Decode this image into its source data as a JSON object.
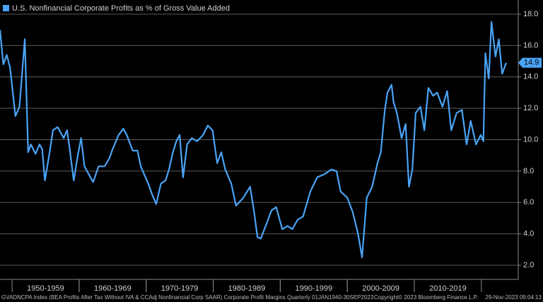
{
  "chart_data": {
    "type": "line",
    "series": [
      {
        "name": "U.S. Nonfinancial Corporate Profits as % of Gross Value Added",
        "color": "#4aa3f5",
        "x": [
          1948.2,
          1948.7,
          1949.2,
          1949.7,
          1950.5,
          1951.1,
          1951.9,
          1952.4,
          1952.8,
          1953.5,
          1954.1,
          1954.5,
          1954.9,
          1955.6,
          1956.1,
          1956.8,
          1957.7,
          1958.2,
          1958.5,
          1959.2,
          1959.8,
          1960.3,
          1960.8,
          1961.3,
          1962.1,
          1962.9,
          1963.8,
          1964.5,
          1965.0,
          1965.9,
          1966.6,
          1967.1,
          1968.0,
          1968.7,
          1969.2,
          1970.3,
          1970.9,
          1971.5,
          1972.2,
          1972.9,
          1973.4,
          1974.0,
          1974.5,
          1975.0,
          1975.5,
          1976.1,
          1976.8,
          1977.6,
          1978.5,
          1979.2,
          1979.9,
          1980.6,
          1981.2,
          1981.8,
          1982.7,
          1983.4,
          1984.5,
          1985.5,
          1986.1,
          1986.6,
          1987.1,
          1988.0,
          1988.7,
          1989.4,
          1990.3,
          1991.1,
          1991.8,
          1992.6,
          1993.4,
          1994.5,
          1995.5,
          1996.6,
          1997.6,
          1998.4,
          1999.0,
          2000.0,
          2000.8,
          2001.6,
          2002.2,
          2002.9,
          2003.7,
          2004.5,
          2005.0,
          2005.6,
          2006.0,
          2006.6,
          2006.9,
          2007.4,
          2008.1,
          2008.7,
          2009.2,
          2009.7,
          2010.2,
          2010.9,
          2011.5,
          2012.1,
          2012.8,
          2013.4,
          2014.2,
          2014.9,
          2015.5,
          2016.3,
          2017.1,
          2017.8,
          2018.4,
          2019.2,
          2019.9,
          2020.3,
          2020.6,
          2021.1,
          2021.5,
          2022.1,
          2022.6,
          2023.1,
          2023.7
        ],
        "values": [
          17.0,
          14.8,
          15.4,
          14.6,
          11.5,
          12.1,
          16.4,
          9.2,
          9.7,
          9.1,
          9.7,
          9.4,
          7.4,
          9.2,
          10.6,
          10.8,
          10.1,
          10.6,
          9.7,
          7.4,
          9.0,
          10.1,
          8.3,
          7.9,
          7.3,
          8.3,
          8.3,
          8.8,
          9.4,
          10.3,
          10.7,
          10.3,
          9.3,
          9.3,
          8.3,
          7.2,
          6.5,
          5.9,
          7.2,
          7.4,
          8.1,
          9.2,
          9.9,
          10.3,
          7.6,
          9.7,
          10.1,
          9.9,
          10.3,
          10.9,
          10.6,
          8.5,
          9.2,
          8.1,
          7.2,
          5.8,
          6.3,
          7.0,
          5.4,
          3.8,
          3.7,
          4.7,
          5.5,
          5.7,
          4.3,
          4.5,
          4.3,
          4.9,
          5.1,
          6.7,
          7.6,
          7.8,
          8.1,
          8.0,
          6.7,
          6.3,
          5.4,
          4.0,
          2.5,
          6.3,
          7.0,
          8.5,
          9.2,
          11.9,
          13.0,
          13.5,
          12.4,
          11.7,
          10.1,
          11.0,
          7.0,
          8.1,
          11.7,
          12.1,
          10.6,
          13.3,
          12.8,
          13.0,
          12.1,
          13.1,
          10.6,
          11.7,
          11.9,
          9.7,
          11.2,
          9.7,
          10.3,
          9.9,
          15.5,
          13.9,
          17.5,
          15.3,
          16.4,
          14.2,
          14.9
        ]
      }
    ],
    "xlim": [
      1948.2,
      2025.5
    ],
    "xticks": [
      {
        "value": 1955,
        "label": "1950-1959"
      },
      {
        "value": 1965,
        "label": "1960-1969"
      },
      {
        "value": 1975,
        "label": "1970-1979"
      },
      {
        "value": 1985,
        "label": "1980-1989"
      },
      {
        "value": 1995,
        "label": "1990-1999"
      },
      {
        "value": 2005,
        "label": "2000-2009"
      },
      {
        "value": 2015,
        "label": "2010-2019"
      }
    ],
    "ylim": [
      1.1,
      18.9
    ],
    "yticks": [
      {
        "value": 2,
        "label": "2.0"
      },
      {
        "value": 4,
        "label": "4.0"
      },
      {
        "value": 6,
        "label": "6.0"
      },
      {
        "value": 8,
        "label": "8.0"
      },
      {
        "value": 10,
        "label": "10.0"
      },
      {
        "value": 12,
        "label": "12.0"
      },
      {
        "value": 14,
        "label": "14.0"
      },
      {
        "value": 16,
        "label": "16.0"
      },
      {
        "value": 18,
        "label": "18.0"
      }
    ],
    "grid": true,
    "footer": {
      "source": "GVADNCPA Index (BEA Profits After Tax Without IVA & CCAdj Nonfinancial Corp SAAR) Corporate Profit Margins  Quarterly 01JAN1940-30SEP2023",
      "copyright": "Copyright© 2023 Bloomberg Finance L.P.",
      "timestamp": "29-Nov-2023 09:04:13"
    }
  }
}
